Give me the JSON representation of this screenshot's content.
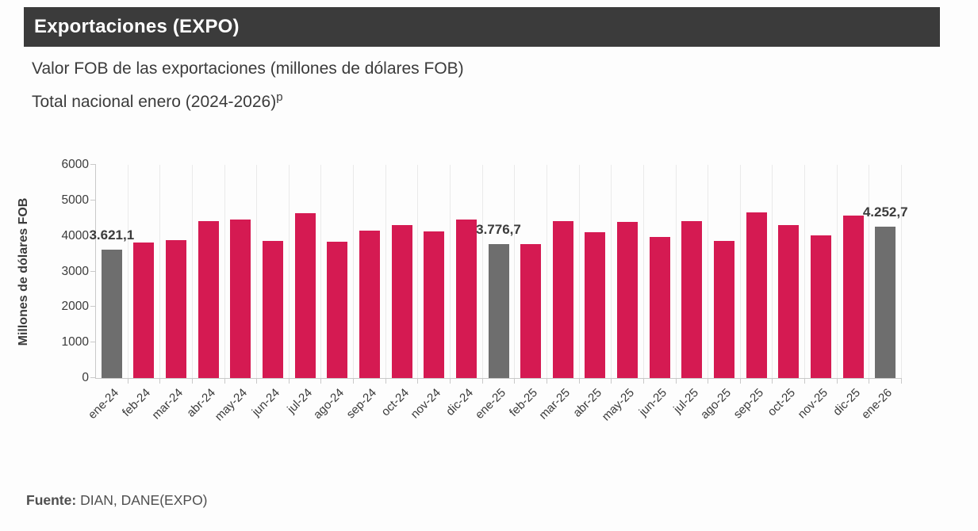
{
  "header": {
    "title": "Exportaciones (EXPO)"
  },
  "subtitle_line1": "Valor FOB de las exportaciones (millones de dólares FOB)",
  "subtitle_line2": "Total nacional enero (2024-2026)",
  "subtitle_superscript": "p",
  "footer": {
    "source_label": "Fuente:",
    "source_text": " DIAN, DANE(EXPO)"
  },
  "colors": {
    "header_bg": "#3b3b3b",
    "bar_pink": "#d51a52",
    "bar_highlight_gray": "#6e6e6e",
    "gridline": "#eaeaea",
    "axis_line": "#c9c9c9",
    "text": "#3b3b3b"
  },
  "chart_data": {
    "type": "bar",
    "title": "Valor FOB de las exportaciones (millones de dólares FOB) — Total nacional enero (2024-2026)p",
    "xlabel": "",
    "ylabel": "Millones de dólares FOB",
    "ylim": [
      0,
      6000
    ],
    "yticks": [
      0,
      1000,
      2000,
      3000,
      4000,
      5000,
      6000
    ],
    "grid": "vertical-only",
    "legend": "none",
    "categories": [
      "ene-24",
      "feb-24",
      "mar-24",
      "abr-24",
      "may-24",
      "jun-24",
      "jul-24",
      "ago-24",
      "sep-24",
      "oct-24",
      "nov-24",
      "dic-24",
      "ene-25",
      "feb-25",
      "mar-25",
      "abr-25",
      "may-25",
      "jun-25",
      "jul-25",
      "ago-25",
      "sep-25",
      "oct-25",
      "nov-25",
      "dic-25",
      "ene-26"
    ],
    "values": [
      3621.1,
      3810,
      3890,
      4420,
      4470,
      3850,
      4650,
      3830,
      4160,
      4300,
      4130,
      4470,
      3776.7,
      3780,
      4420,
      4110,
      4400,
      3970,
      4420,
      3870,
      4660,
      4310,
      4020,
      4570,
      4252.7
    ],
    "highlighted_categories": [
      "ene-24",
      "ene-25",
      "ene-26"
    ],
    "data_labels": {
      "ene-24": "3.621,1",
      "ene-25": "3.776,7",
      "ene-26": "4.252,7"
    }
  }
}
